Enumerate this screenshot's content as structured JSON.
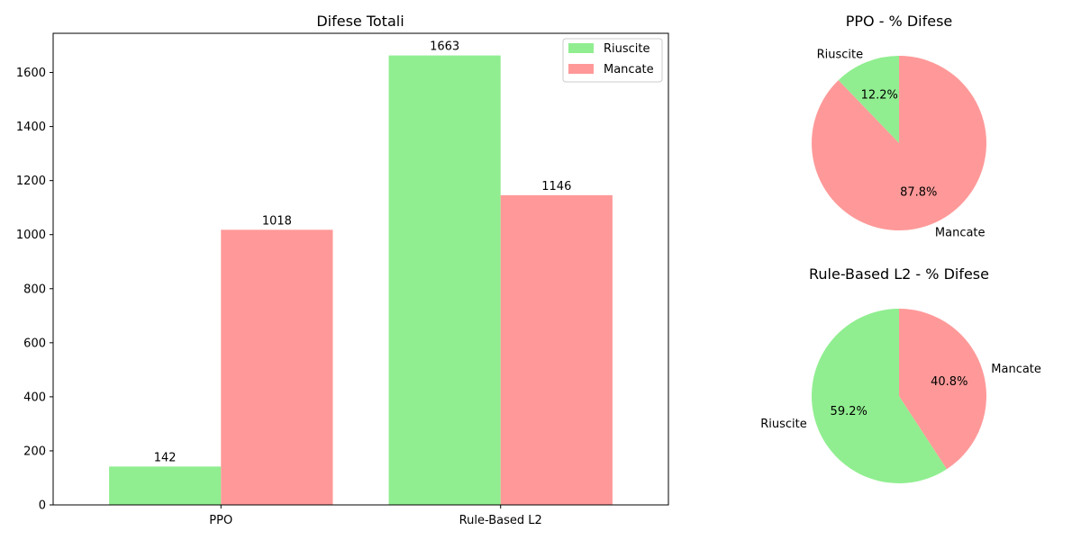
{
  "colors": {
    "success": "#90EE90",
    "failure": "#FF9999"
  },
  "chart_data": [
    {
      "type": "bar",
      "title": "Difese Totali",
      "categories": [
        "PPO",
        "Rule-Based L2"
      ],
      "series": [
        {
          "name": "Riuscite",
          "values": [
            142,
            1663
          ],
          "color": "#90EE90"
        },
        {
          "name": "Mancate",
          "values": [
            1018,
            1146
          ],
          "color": "#FF9999"
        }
      ],
      "ylim": [
        0,
        1745
      ],
      "yticks": [
        0,
        200,
        400,
        600,
        800,
        1000,
        1200,
        1400,
        1600
      ],
      "legend": "top-right",
      "grid": false
    },
    {
      "type": "pie",
      "title": "PPO - % Difese",
      "labels": [
        "Riuscite",
        "Mancate"
      ],
      "values": [
        12.2,
        87.8
      ],
      "pct_labels": [
        "12.2%",
        "87.8%"
      ],
      "colors": [
        "#90EE90",
        "#FF9999"
      ]
    },
    {
      "type": "pie",
      "title": "Rule-Based L2 - % Difese",
      "labels": [
        "Riuscite",
        "Mancate"
      ],
      "values": [
        59.2,
        40.8
      ],
      "pct_labels": [
        "59.2%",
        "40.8%"
      ],
      "colors": [
        "#90EE90",
        "#FF9999"
      ]
    }
  ]
}
